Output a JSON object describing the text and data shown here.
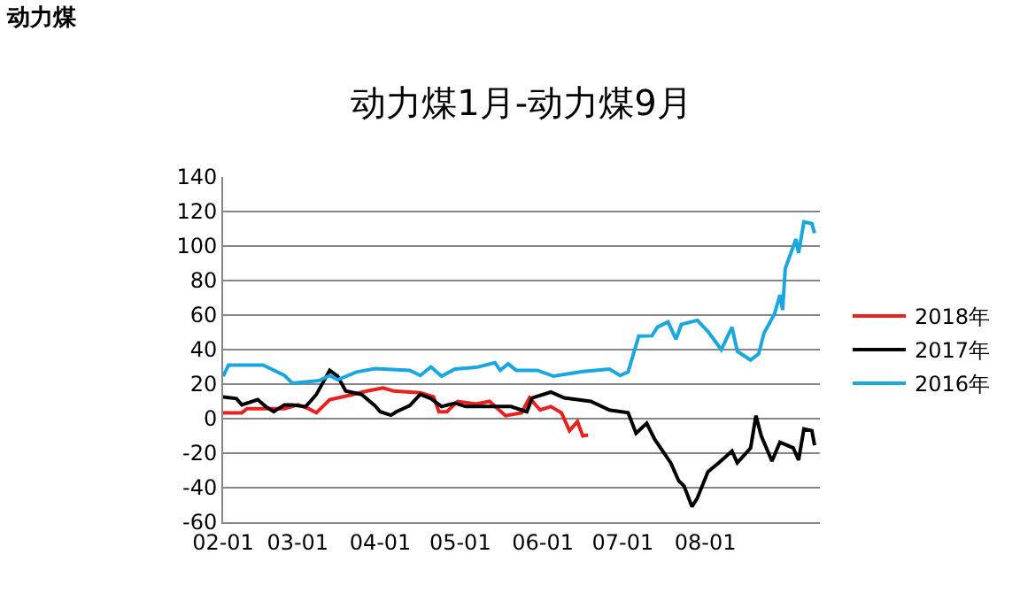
{
  "chart_data": {
    "type": "line",
    "title": "动力煤1月-动力煤9月",
    "annotations": [
      "动力煤"
    ],
    "xlim": [
      "--02-01",
      "--09-13"
    ],
    "xticks": [
      {
        "value": "--02-01",
        "label": "02-01"
      },
      {
        "value": "--03-01",
        "label": "03-01"
      },
      {
        "value": "--04-01",
        "label": "04-01"
      },
      {
        "value": "--05-01",
        "label": "05-01"
      },
      {
        "value": "--06-01",
        "label": "06-01"
      },
      {
        "value": "--07-01",
        "label": "07-01"
      },
      {
        "value": "--08-01",
        "label": "08-01"
      }
    ],
    "ylim": [
      -60,
      140
    ],
    "yticks": [
      -60,
      -40,
      -20,
      0,
      20,
      40,
      60,
      80,
      100,
      120,
      140
    ],
    "grid": "y",
    "legend": "right",
    "marker": "none",
    "line_style": "solid",
    "series": [
      {
        "name": "2018年",
        "color": "#e8201e",
        "x": [
          "--02-01",
          "--02-08",
          "--02-10",
          "--02-24",
          "--03-01",
          "--03-05",
          "--03-08",
          "--03-13",
          "--03-21",
          "--03-27",
          "--04-02",
          "--04-06",
          "--04-16",
          "--04-21",
          "--04-23",
          "--04-26",
          "--04-30",
          "--05-07",
          "--05-12",
          "--05-18",
          "--05-24",
          "--05-27",
          "--05-31",
          "--06-04",
          "--06-08",
          "--06-11",
          "--06-14",
          "--06-16",
          "--06-18"
        ],
        "values": [
          3.4,
          3.4,
          5.8,
          5.8,
          8,
          5.8,
          3.4,
          11,
          13.7,
          16,
          17.8,
          16,
          15,
          12.6,
          4,
          4,
          10,
          8.5,
          10,
          1.7,
          3.4,
          12,
          5,
          7,
          3.4,
          -7,
          -1.7,
          -10,
          -9.5
        ]
      },
      {
        "name": "2017年",
        "color": "#000000",
        "x": [
          "--02-01",
          "--02-06",
          "--02-08",
          "--02-14",
          "--02-17",
          "--02-20",
          "--02-24",
          "--02-27",
          "--03-04",
          "--03-08",
          "--03-13",
          "--03-16",
          "--03-19",
          "--03-25",
          "--03-30",
          "--04-01",
          "--04-05",
          "--04-07",
          "--04-12",
          "--04-16",
          "--04-20",
          "--04-24",
          "--04-29",
          "--05-03",
          "--05-07",
          "--05-12",
          "--05-20",
          "--05-26",
          "--05-28",
          "--06-04",
          "--06-09",
          "--06-19",
          "--06-26",
          "--07-03",
          "--07-06",
          "--07-10",
          "--07-13",
          "--07-19",
          "--07-22",
          "--07-24",
          "--07-27",
          "--07-29",
          "--08-02",
          "--08-06",
          "--08-11",
          "--08-13",
          "--08-18",
          "--08-20",
          "--08-22",
          "--08-26",
          "--08-29",
          "--09-03",
          "--09-05",
          "--09-07",
          "--09-10",
          "--09-11"
        ],
        "values": [
          12.6,
          11.6,
          8,
          11,
          7,
          4,
          8,
          8,
          7,
          14,
          28,
          24.6,
          16,
          14,
          7.5,
          4,
          2,
          4,
          7.5,
          14,
          11.6,
          7,
          9,
          7,
          7,
          7,
          7,
          4,
          12,
          15.4,
          12,
          10,
          5,
          3.4,
          -8.5,
          -2.7,
          -12,
          -25.6,
          -36,
          -39,
          -51,
          -46,
          -30.7,
          -25.6,
          -18.8,
          -25.6,
          -17,
          1.7,
          -10,
          -24.6,
          -13.7,
          -17,
          -24,
          -6,
          -7,
          -15.4
        ]
      },
      {
        "name": "2016年",
        "color": "#1aa7df",
        "x": [
          "--02-01",
          "--02-03",
          "--02-16",
          "--02-24",
          "--02-27",
          "--03-09",
          "--03-13",
          "--03-16",
          "--03-23",
          "--03-30",
          "--04-12",
          "--04-16",
          "--04-20",
          "--04-24",
          "--04-29",
          "--05-07",
          "--05-14",
          "--05-16",
          "--05-19",
          "--05-22",
          "--05-30",
          "--06-05",
          "--06-16",
          "--06-26",
          "--06-30",
          "--07-03",
          "--07-07",
          "--07-12",
          "--07-14",
          "--07-18",
          "--07-21",
          "--07-23",
          "--07-29",
          "--08-02",
          "--08-07",
          "--08-11",
          "--08-13",
          "--08-18",
          "--08-21",
          "--08-23",
          "--08-27",
          "--08-29",
          "--08-30",
          "--08-31",
          "--09-04",
          "--09-05",
          "--09-07",
          "--09-10",
          "--09-11"
        ],
        "values": [
          24.6,
          31,
          31,
          25,
          20.5,
          22,
          25,
          22.5,
          27,
          29,
          28,
          25,
          30,
          24.6,
          28.7,
          29.7,
          32.4,
          28,
          31.7,
          28,
          28,
          24.6,
          27.3,
          28.7,
          25,
          27,
          47.8,
          48,
          53,
          56,
          46,
          54.6,
          57,
          50.5,
          40,
          53,
          39,
          34,
          37.5,
          49.5,
          60.8,
          71.7,
          63,
          87,
          104,
          96,
          114,
          113,
          107.5
        ]
      }
    ]
  }
}
